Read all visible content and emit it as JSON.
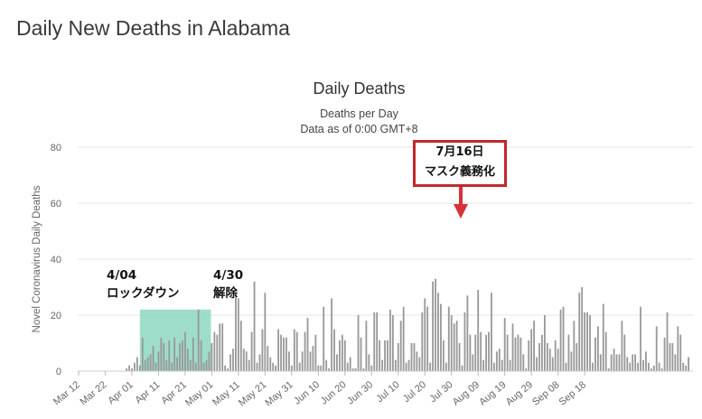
{
  "page": {
    "title": "Daily New Deaths in Alabama"
  },
  "chart_data": {
    "type": "bar",
    "title": "Daily Deaths",
    "subtitle": "Deaths per Day",
    "subtitle2": "Data as of 0:00 GMT+8",
    "ylabel": "Novel Coronavirus Daily Deaths",
    "ylim": [
      0,
      80
    ],
    "yticks": [
      0,
      20,
      40,
      60,
      80
    ],
    "xticks": [
      "Mar 12",
      "Mar 22",
      "Apr 01",
      "Apr 11",
      "Apr 21",
      "May 01",
      "May 11",
      "May 21",
      "May 31",
      "Jun 10",
      "Jun 20",
      "Jun 30",
      "Jul 10",
      "Jul 20",
      "Jul 30",
      "Aug 09",
      "Aug 19",
      "Aug 29",
      "Sep 08",
      "Sep 18"
    ],
    "start_date": "2020-03-12",
    "bar_color": "#999999",
    "values": [
      0,
      0,
      0,
      0,
      0,
      0,
      0,
      0,
      0,
      0,
      0,
      0,
      0,
      0,
      0,
      0,
      0,
      0,
      1,
      2,
      1,
      3,
      5,
      2,
      12,
      4,
      5,
      6,
      9,
      3,
      7,
      12,
      10,
      4,
      11,
      3,
      12,
      5,
      10,
      11,
      14,
      8,
      4,
      12,
      3,
      22,
      11,
      3,
      4,
      7,
      10,
      14,
      13,
      17,
      17,
      2,
      1,
      6,
      8,
      28,
      26,
      18,
      8,
      7,
      4,
      14,
      32,
      3,
      6,
      15,
      28,
      9,
      5,
      3,
      2,
      15,
      13,
      12,
      12,
      7,
      2,
      15,
      14,
      3,
      7,
      14,
      19,
      7,
      9,
      13,
      2,
      2,
      23,
      4,
      1,
      26,
      15,
      6,
      11,
      13,
      11,
      3,
      5,
      1,
      1,
      20,
      12,
      1,
      18,
      6,
      2,
      21,
      21,
      11,
      4,
      11,
      11,
      22,
      20,
      4,
      10,
      18,
      23,
      3,
      4,
      10,
      10,
      7,
      5,
      21,
      26,
      23,
      3,
      32,
      33,
      28,
      24,
      11,
      3,
      23,
      20,
      17,
      18,
      10,
      2,
      21,
      27,
      13,
      6,
      13,
      29,
      14,
      4,
      13,
      14,
      28,
      3,
      7,
      8,
      4,
      19,
      13,
      4,
      17,
      12,
      13,
      12,
      6,
      1,
      11,
      15,
      18,
      5,
      10,
      13,
      20,
      10,
      8,
      5,
      11,
      8,
      22,
      23,
      3,
      13,
      7,
      18,
      10,
      28,
      30,
      21,
      21,
      20,
      3,
      12,
      16,
      6,
      24,
      14,
      1,
      6,
      8,
      6,
      6,
      18,
      13,
      5,
      3,
      6,
      6,
      3,
      23,
      4,
      7,
      3,
      1,
      2,
      16,
      3,
      1,
      12,
      21,
      10,
      10,
      6,
      16,
      13,
      3,
      2,
      5
    ],
    "annotations": [
      {
        "label_date": "4/04",
        "label_text": "ロックダウン"
      },
      {
        "label_date": "4/30",
        "label_text": "解除"
      },
      {
        "label_date": "7月16日",
        "label_text": "マスク義務化"
      }
    ],
    "highlight": {
      "from": "Apr 04",
      "to": "Apr 30",
      "color": "#7fd1b9"
    },
    "arrow_color": "#d63239"
  }
}
